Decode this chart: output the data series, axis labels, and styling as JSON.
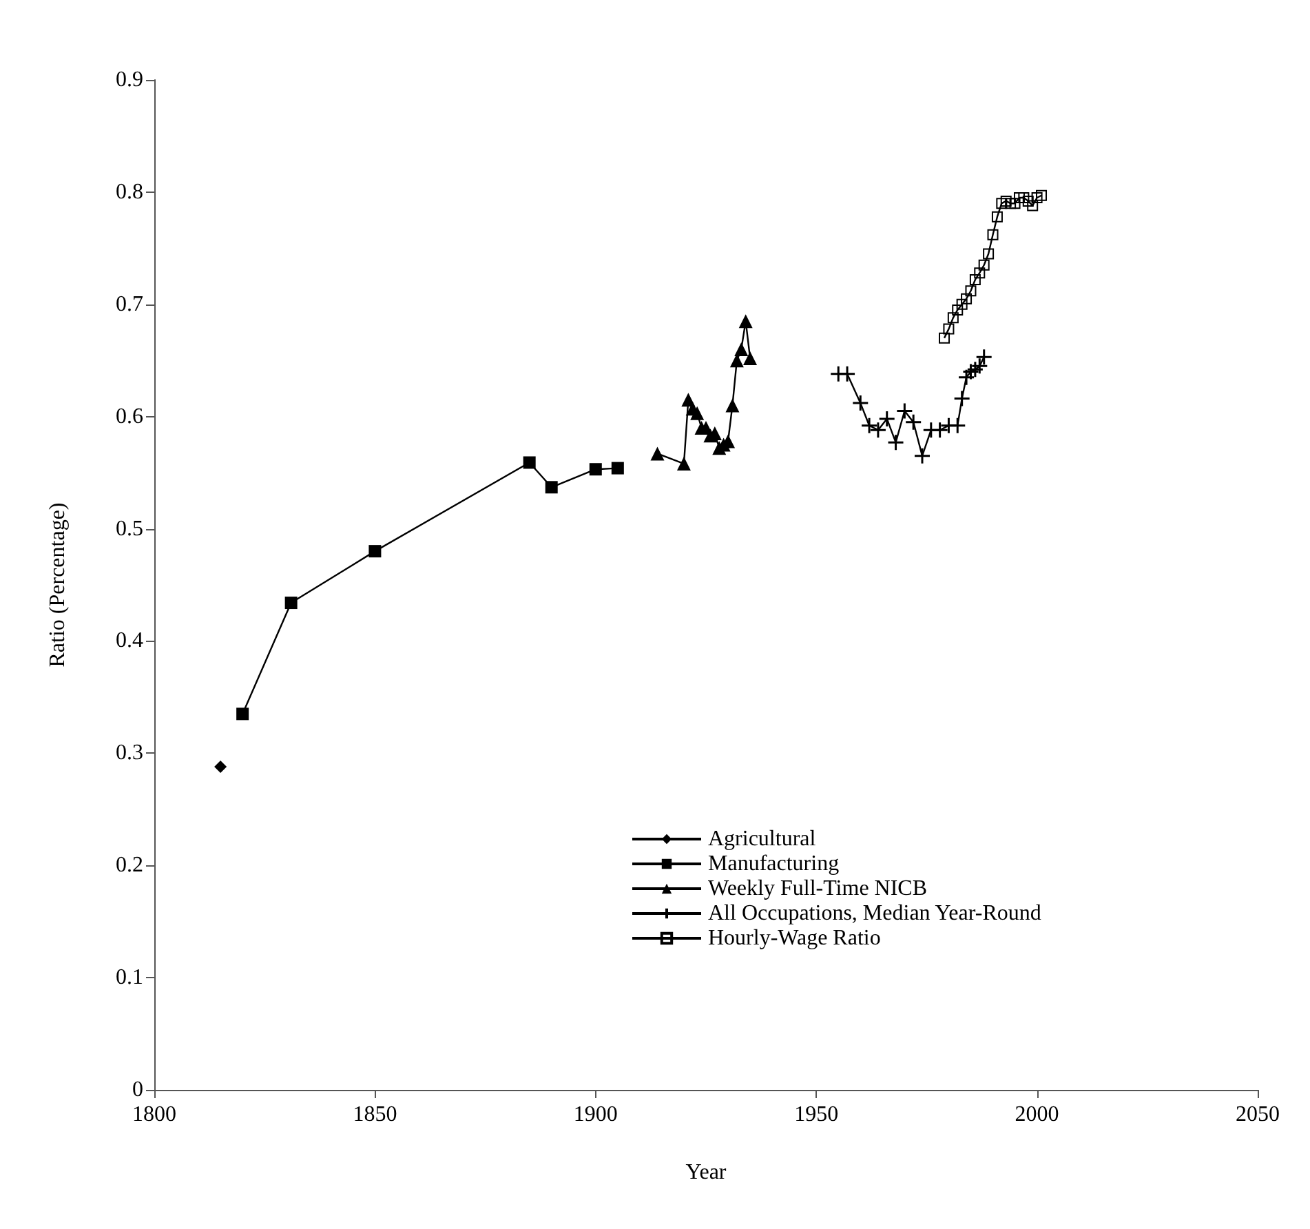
{
  "chart_data": {
    "type": "line",
    "xlabel": "Year",
    "ylabel": "Ratio (Percentage)",
    "xlim": [
      1800,
      2050
    ],
    "xticks": [
      1800,
      1850,
      1900,
      1950,
      2000,
      2050
    ],
    "ylim": [
      0,
      0.9
    ],
    "yticks": [
      0,
      0.1,
      0.2,
      0.3,
      0.4,
      0.5,
      0.6,
      0.7,
      0.8,
      0.9
    ],
    "grid": false,
    "legend": "bottom right",
    "series": [
      {
        "name": "Agricultural",
        "color": "#000000",
        "marker": "diamond",
        "x": [
          1815
        ],
        "values": [
          0.288
        ]
      },
      {
        "name": "Manufacturing",
        "color": "#000000",
        "marker": "square",
        "x": [
          1820,
          1831,
          1850,
          1885,
          1890,
          1900,
          1905
        ],
        "values": [
          0.335,
          0.434,
          0.48,
          0.559,
          0.537,
          0.553,
          0.554
        ]
      },
      {
        "name": "Weekly Full-Time NICB",
        "color": "#000000",
        "marker": "triangle",
        "x": [
          1914,
          1920,
          1921,
          1922,
          1923,
          1924,
          1925,
          1926,
          1927,
          1928,
          1929,
          1930,
          1931,
          1932,
          1933,
          1934,
          1935
        ],
        "values": [
          0.567,
          0.558,
          0.615,
          0.607,
          0.603,
          0.59,
          0.59,
          0.583,
          0.585,
          0.572,
          0.575,
          0.578,
          0.61,
          0.65,
          0.66,
          0.685,
          0.652
        ]
      },
      {
        "name": "All Occupations, Median Year-Round",
        "color": "#000000",
        "marker": "cross",
        "x": [
          1955,
          1957,
          1960,
          1962,
          1964,
          1966,
          1968,
          1970,
          1972,
          1974,
          1976,
          1978,
          1980,
          1982,
          1983,
          1984,
          1985,
          1986,
          1987,
          1988
        ],
        "values": [
          0.638,
          0.638,
          0.612,
          0.592,
          0.588,
          0.598,
          0.577,
          0.605,
          0.595,
          0.565,
          0.588,
          0.588,
          0.592,
          0.592,
          0.616,
          0.635,
          0.64,
          0.642,
          0.645,
          0.653
        ]
      },
      {
        "name": "Hourly-Wage Ratio",
        "color": "#000000",
        "marker": "square",
        "x": [
          1979,
          1980,
          1981,
          1982,
          1983,
          1984,
          1985,
          1986,
          1987,
          1988,
          1989,
          1990,
          1991,
          1992,
          1993,
          1994,
          1995,
          1996,
          1997,
          1998,
          1999,
          2000,
          2001
        ],
        "values": [
          0.67,
          0.678,
          0.688,
          0.695,
          0.7,
          0.705,
          0.712,
          0.722,
          0.728,
          0.735,
          0.745,
          0.762,
          0.778,
          0.79,
          0.792,
          0.79,
          0.79,
          0.795,
          0.795,
          0.792,
          0.788,
          0.795,
          0.797
        ]
      }
    ]
  }
}
